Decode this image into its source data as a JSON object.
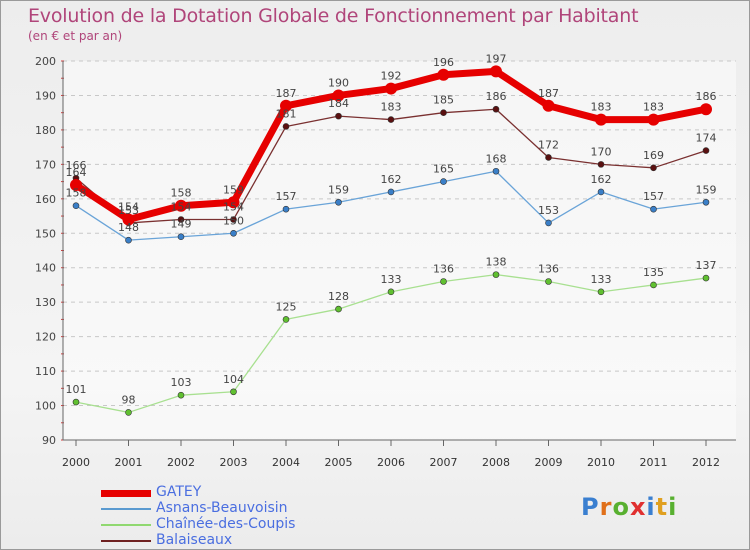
{
  "title": "Evolution de la Dotation Globale de Fonctionnement par Habitant",
  "subtitle": "(en € et par an)",
  "logo": {
    "text": "Proxiti",
    "letter_colors": [
      "#3a7fd0",
      "#e0701a",
      "#58b030",
      "#e03030",
      "#3a7fd0",
      "#e0a020",
      "#58b030"
    ]
  },
  "chart_data": {
    "type": "line",
    "x": [
      "2000",
      "2001",
      "2002",
      "2003",
      "2004",
      "2005",
      "2006",
      "2007",
      "2008",
      "2009",
      "2010",
      "2011",
      "2012"
    ],
    "ylim": [
      90,
      200
    ],
    "yticks": [
      "90",
      "100",
      "110",
      "120",
      "130",
      "140",
      "150",
      "160",
      "170",
      "180",
      "190",
      "200"
    ],
    "grid": "horizontal dashed",
    "legend_position": "bottom-left",
    "series": [
      {
        "name": "GATEY",
        "color": "#e60000",
        "values": [
          164,
          154,
          158,
          159,
          187,
          190,
          192,
          196,
          197,
          187,
          183,
          183,
          186
        ]
      },
      {
        "name": "Asnans-Beauvoisin",
        "color": "#5a9ad0",
        "values": [
          158,
          148,
          149,
          150,
          157,
          159,
          162,
          165,
          168,
          153,
          162,
          157,
          159
        ]
      },
      {
        "name": "Chaînée-des-Coupis",
        "color": "#90d870",
        "values": [
          101,
          98,
          103,
          104,
          125,
          128,
          133,
          136,
          138,
          136,
          133,
          135,
          137
        ]
      },
      {
        "name": "Balaiseaux",
        "color": "#6e2020",
        "values": [
          166,
          153,
          154,
          154,
          181,
          184,
          183,
          185,
          186,
          172,
          170,
          169,
          174
        ]
      }
    ]
  }
}
